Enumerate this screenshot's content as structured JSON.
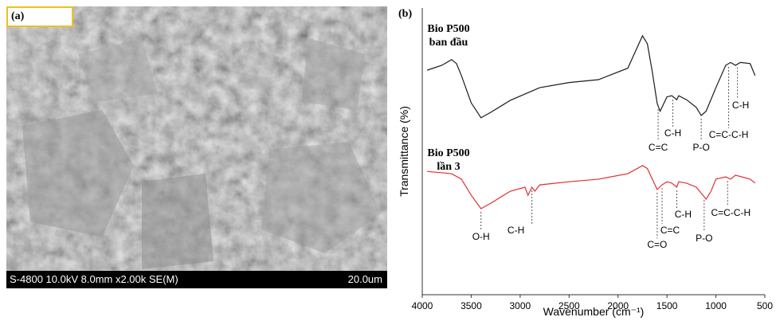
{
  "panel_a": {
    "label": "(a)",
    "info": "S-4800 10.0kV 8.0mm x2.00k SE(M)",
    "scale": "20.0um"
  },
  "chart_data": {
    "type": "line",
    "panel_label": "(b)",
    "xlabel": "Wavenumber (cm⁻¹)",
    "ylabel": "Transmittance (%)",
    "xlim": [
      4000,
      500
    ],
    "xticks": [
      4000,
      3500,
      3000,
      2500,
      2000,
      1500,
      1000,
      500
    ],
    "ylim": [
      0,
      100
    ],
    "series": [
      {
        "name": "Bio P500 ban đầu",
        "color": "#1a1a1a",
        "x": [
          3950,
          3800,
          3700,
          3650,
          3600,
          3500,
          3400,
          3300,
          3100,
          2800,
          2500,
          2200,
          1900,
          1750,
          1700,
          1650,
          1600,
          1570,
          1500,
          1450,
          1400,
          1380,
          1300,
          1200,
          1150,
          1100,
          1000,
          900,
          850,
          800,
          750,
          650,
          600
        ],
        "values": [
          78.3,
          80,
          82,
          80.6,
          76.4,
          66.9,
          61.7,
          63.6,
          67.8,
          72.2,
          74,
          75,
          79,
          90.3,
          87.5,
          77.8,
          66.7,
          64,
          69,
          69.4,
          68,
          69.4,
          68,
          65.3,
          62.5,
          64,
          72.2,
          80,
          81,
          80,
          81,
          80.6,
          76.4
        ]
      },
      {
        "name": "Bio P500 lần 3",
        "color": "#e03030",
        "x": [
          3950,
          3700,
          3600,
          3500,
          3400,
          3300,
          3100,
          2950,
          2920,
          2880,
          2850,
          2800,
          2500,
          2200,
          1900,
          1750,
          1700,
          1650,
          1600,
          1550,
          1500,
          1450,
          1400,
          1380,
          1300,
          1200,
          1100,
          1050,
          1000,
          900,
          850,
          800,
          650,
          600
        ],
        "values": [
          43,
          42.2,
          40.3,
          34.7,
          30,
          31.9,
          36.1,
          37.5,
          34.7,
          37.5,
          36.1,
          38.3,
          39.4,
          40.3,
          42.2,
          45,
          44,
          40.3,
          36.7,
          38.3,
          39.4,
          38.9,
          37.5,
          39.4,
          38.9,
          37.5,
          33.3,
          36.1,
          40.3,
          41.1,
          40.3,
          41.7,
          40.3,
          38.9
        ]
      }
    ],
    "annotations": [
      {
        "text": "C=C",
        "x": 1590,
        "series": 0
      },
      {
        "text": "C-H",
        "x": 1440,
        "series": 0
      },
      {
        "text": "P-O",
        "x": 1150,
        "series": 0
      },
      {
        "text": "C=C-C-H",
        "x": 870,
        "series": 0
      },
      {
        "text": "C-H",
        "x": 780,
        "series": 0
      },
      {
        "text": "O-H",
        "x": 3400,
        "series": 1
      },
      {
        "text": "C-H",
        "x": 2880,
        "series": 1
      },
      {
        "text": "C=O",
        "x": 1600,
        "series": 1
      },
      {
        "text": "C=C",
        "x": 1550,
        "series": 1
      },
      {
        "text": "C-H",
        "x": 1400,
        "series": 1
      },
      {
        "text": "P-O",
        "x": 1120,
        "series": 1
      },
      {
        "text": "C=C-C-H",
        "x": 880,
        "series": 1
      }
    ]
  }
}
